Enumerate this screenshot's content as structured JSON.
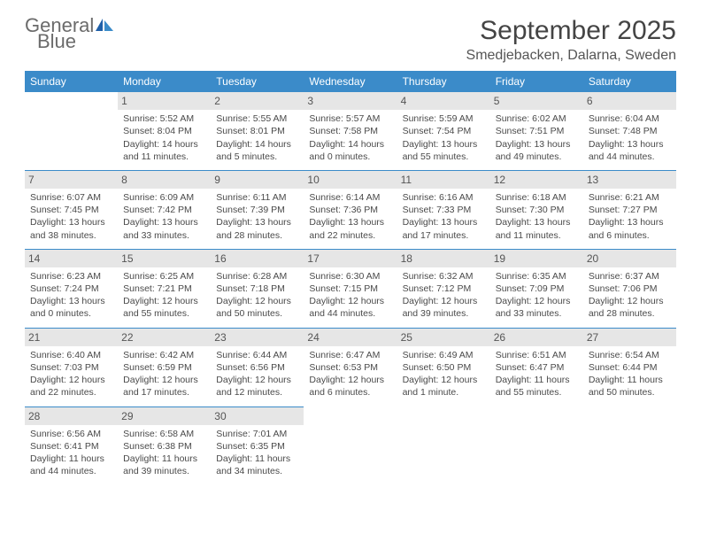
{
  "brand": {
    "part1": "General",
    "part2": "Blue"
  },
  "title": "September 2025",
  "location": "Smedjebacken, Dalarna, Sweden",
  "colors": {
    "header_bg": "#3b8bc9",
    "header_text": "#ffffff",
    "daynum_bg": "#e6e6e6",
    "border": "#3b8bc9",
    "logo_blue": "#3b7fc4",
    "text": "#4a4a4a"
  },
  "weekday_labels": [
    "Sunday",
    "Monday",
    "Tuesday",
    "Wednesday",
    "Thursday",
    "Friday",
    "Saturday"
  ],
  "weeks": [
    [
      null,
      {
        "n": "1",
        "sr": "Sunrise: 5:52 AM",
        "ss": "Sunset: 8:04 PM",
        "d1": "Daylight: 14 hours",
        "d2": "and 11 minutes."
      },
      {
        "n": "2",
        "sr": "Sunrise: 5:55 AM",
        "ss": "Sunset: 8:01 PM",
        "d1": "Daylight: 14 hours",
        "d2": "and 5 minutes."
      },
      {
        "n": "3",
        "sr": "Sunrise: 5:57 AM",
        "ss": "Sunset: 7:58 PM",
        "d1": "Daylight: 14 hours",
        "d2": "and 0 minutes."
      },
      {
        "n": "4",
        "sr": "Sunrise: 5:59 AM",
        "ss": "Sunset: 7:54 PM",
        "d1": "Daylight: 13 hours",
        "d2": "and 55 minutes."
      },
      {
        "n": "5",
        "sr": "Sunrise: 6:02 AM",
        "ss": "Sunset: 7:51 PM",
        "d1": "Daylight: 13 hours",
        "d2": "and 49 minutes."
      },
      {
        "n": "6",
        "sr": "Sunrise: 6:04 AM",
        "ss": "Sunset: 7:48 PM",
        "d1": "Daylight: 13 hours",
        "d2": "and 44 minutes."
      }
    ],
    [
      {
        "n": "7",
        "sr": "Sunrise: 6:07 AM",
        "ss": "Sunset: 7:45 PM",
        "d1": "Daylight: 13 hours",
        "d2": "and 38 minutes."
      },
      {
        "n": "8",
        "sr": "Sunrise: 6:09 AM",
        "ss": "Sunset: 7:42 PM",
        "d1": "Daylight: 13 hours",
        "d2": "and 33 minutes."
      },
      {
        "n": "9",
        "sr": "Sunrise: 6:11 AM",
        "ss": "Sunset: 7:39 PM",
        "d1": "Daylight: 13 hours",
        "d2": "and 28 minutes."
      },
      {
        "n": "10",
        "sr": "Sunrise: 6:14 AM",
        "ss": "Sunset: 7:36 PM",
        "d1": "Daylight: 13 hours",
        "d2": "and 22 minutes."
      },
      {
        "n": "11",
        "sr": "Sunrise: 6:16 AM",
        "ss": "Sunset: 7:33 PM",
        "d1": "Daylight: 13 hours",
        "d2": "and 17 minutes."
      },
      {
        "n": "12",
        "sr": "Sunrise: 6:18 AM",
        "ss": "Sunset: 7:30 PM",
        "d1": "Daylight: 13 hours",
        "d2": "and 11 minutes."
      },
      {
        "n": "13",
        "sr": "Sunrise: 6:21 AM",
        "ss": "Sunset: 7:27 PM",
        "d1": "Daylight: 13 hours",
        "d2": "and 6 minutes."
      }
    ],
    [
      {
        "n": "14",
        "sr": "Sunrise: 6:23 AM",
        "ss": "Sunset: 7:24 PM",
        "d1": "Daylight: 13 hours",
        "d2": "and 0 minutes."
      },
      {
        "n": "15",
        "sr": "Sunrise: 6:25 AM",
        "ss": "Sunset: 7:21 PM",
        "d1": "Daylight: 12 hours",
        "d2": "and 55 minutes."
      },
      {
        "n": "16",
        "sr": "Sunrise: 6:28 AM",
        "ss": "Sunset: 7:18 PM",
        "d1": "Daylight: 12 hours",
        "d2": "and 50 minutes."
      },
      {
        "n": "17",
        "sr": "Sunrise: 6:30 AM",
        "ss": "Sunset: 7:15 PM",
        "d1": "Daylight: 12 hours",
        "d2": "and 44 minutes."
      },
      {
        "n": "18",
        "sr": "Sunrise: 6:32 AM",
        "ss": "Sunset: 7:12 PM",
        "d1": "Daylight: 12 hours",
        "d2": "and 39 minutes."
      },
      {
        "n": "19",
        "sr": "Sunrise: 6:35 AM",
        "ss": "Sunset: 7:09 PM",
        "d1": "Daylight: 12 hours",
        "d2": "and 33 minutes."
      },
      {
        "n": "20",
        "sr": "Sunrise: 6:37 AM",
        "ss": "Sunset: 7:06 PM",
        "d1": "Daylight: 12 hours",
        "d2": "and 28 minutes."
      }
    ],
    [
      {
        "n": "21",
        "sr": "Sunrise: 6:40 AM",
        "ss": "Sunset: 7:03 PM",
        "d1": "Daylight: 12 hours",
        "d2": "and 22 minutes."
      },
      {
        "n": "22",
        "sr": "Sunrise: 6:42 AM",
        "ss": "Sunset: 6:59 PM",
        "d1": "Daylight: 12 hours",
        "d2": "and 17 minutes."
      },
      {
        "n": "23",
        "sr": "Sunrise: 6:44 AM",
        "ss": "Sunset: 6:56 PM",
        "d1": "Daylight: 12 hours",
        "d2": "and 12 minutes."
      },
      {
        "n": "24",
        "sr": "Sunrise: 6:47 AM",
        "ss": "Sunset: 6:53 PM",
        "d1": "Daylight: 12 hours",
        "d2": "and 6 minutes."
      },
      {
        "n": "25",
        "sr": "Sunrise: 6:49 AM",
        "ss": "Sunset: 6:50 PM",
        "d1": "Daylight: 12 hours",
        "d2": "and 1 minute."
      },
      {
        "n": "26",
        "sr": "Sunrise: 6:51 AM",
        "ss": "Sunset: 6:47 PM",
        "d1": "Daylight: 11 hours",
        "d2": "and 55 minutes."
      },
      {
        "n": "27",
        "sr": "Sunrise: 6:54 AM",
        "ss": "Sunset: 6:44 PM",
        "d1": "Daylight: 11 hours",
        "d2": "and 50 minutes."
      }
    ],
    [
      {
        "n": "28",
        "sr": "Sunrise: 6:56 AM",
        "ss": "Sunset: 6:41 PM",
        "d1": "Daylight: 11 hours",
        "d2": "and 44 minutes."
      },
      {
        "n": "29",
        "sr": "Sunrise: 6:58 AM",
        "ss": "Sunset: 6:38 PM",
        "d1": "Daylight: 11 hours",
        "d2": "and 39 minutes."
      },
      {
        "n": "30",
        "sr": "Sunrise: 7:01 AM",
        "ss": "Sunset: 6:35 PM",
        "d1": "Daylight: 11 hours",
        "d2": "and 34 minutes."
      },
      null,
      null,
      null,
      null
    ]
  ]
}
